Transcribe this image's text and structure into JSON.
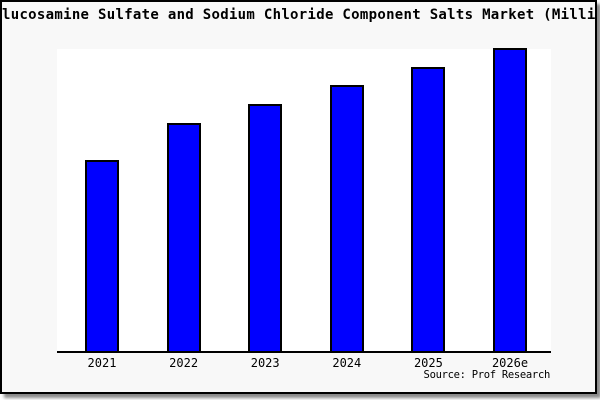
{
  "window": {
    "card_background": "#f8f8f8",
    "page_background": "#ffffff",
    "border_color": "#000000",
    "shadow_color": "#8a8a8a"
  },
  "header": {
    "title": "lucosamine Sulfate and Sodium Chloride Component Salts Market (Milli"
  },
  "footer": {
    "source": "Source: Prof Research"
  },
  "chart_data": {
    "type": "bar",
    "title": "lucosamine Sulfate and Sodium Chloride Component Salts Market (Milli",
    "title_note": "title clipped at both left and right edges of image",
    "categories": [
      "2021",
      "2022",
      "2023",
      "2024",
      "2025",
      "2026e"
    ],
    "values": [
      189,
      226,
      245,
      264,
      282,
      301
    ],
    "value_unit": "relative bar height in px (no y-axis scale or value labels shown)",
    "values_normalized_to_max": [
      0.63,
      0.75,
      0.81,
      0.88,
      0.94,
      1.0
    ],
    "bar_color": "#0000ff",
    "bar_border_color": "#000000",
    "xlabel": "",
    "ylabel": "",
    "y_axis_shown": false,
    "grid": false,
    "legend": false,
    "source": "Source: Prof Research"
  }
}
